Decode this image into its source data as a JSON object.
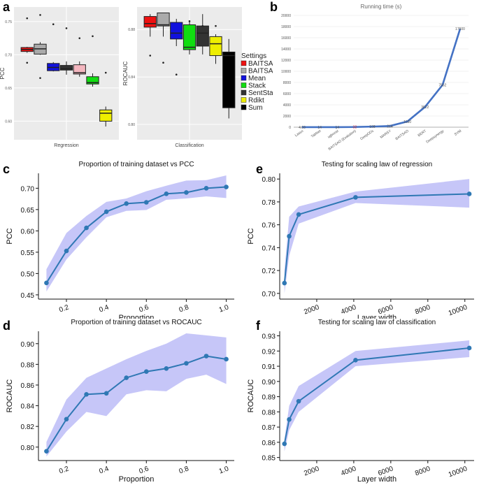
{
  "panel_labels": {
    "a": "a",
    "b": "b",
    "c": "c",
    "d": "d",
    "e": "e",
    "f": "f"
  },
  "colors": {
    "line": "#2f78b4",
    "band": "#b3b3f5",
    "grid": "#ebebeb",
    "boxbg": "#ebebeb",
    "bline": "#4472c4"
  },
  "chart_data": [
    {
      "id": "a_left",
      "type": "boxplot",
      "xlabel": "Regression",
      "ylabel": "PCC",
      "yticks": [
        "0.75",
        "0.70",
        "0.65",
        "0.60"
      ],
      "ylim": [
        0.572,
        0.772
      ],
      "box_colors": [
        "#ee1111",
        "#aaaaaa",
        "#1111dd",
        "#333333",
        "#f4b6bf",
        "#11dd11",
        "#eeee00"
      ],
      "boxes": [
        {
          "q1": 0.705,
          "med": 0.708,
          "q3": 0.711,
          "lo": 0.703,
          "hi": 0.712
        },
        {
          "q1": 0.701,
          "med": 0.709,
          "q3": 0.716,
          "lo": 0.7,
          "hi": 0.719
        },
        {
          "q1": 0.676,
          "med": 0.681,
          "q3": 0.687,
          "lo": 0.675,
          "hi": 0.689
        },
        {
          "q1": 0.677,
          "med": 0.679,
          "q3": 0.684,
          "lo": 0.67,
          "hi": 0.69
        },
        {
          "q1": 0.671,
          "med": 0.673,
          "q3": 0.685,
          "lo": 0.667,
          "hi": 0.69
        },
        {
          "q1": 0.656,
          "med": 0.658,
          "q3": 0.667,
          "lo": 0.652,
          "hi": 0.672
        },
        {
          "q1": 0.6,
          "med": 0.612,
          "q3": 0.617,
          "lo": 0.592,
          "hi": 0.622
        }
      ],
      "outliers": [
        [
          0,
          0.755
        ],
        [
          0,
          0.688
        ],
        [
          1,
          0.76
        ],
        [
          1,
          0.665
        ],
        [
          2,
          0.746
        ],
        [
          3,
          0.74
        ],
        [
          4,
          0.725
        ],
        [
          5,
          0.728
        ],
        [
          6,
          0.673
        ]
      ]
    },
    {
      "id": "a_right",
      "type": "boxplot",
      "xlabel": "Classification",
      "ylabel": "ROCAUC",
      "yticks": [
        "0.88",
        "0.84",
        "0.80"
      ],
      "ylim": [
        0.787,
        0.899
      ],
      "boxes": [
        {
          "q1": 0.882,
          "med": 0.885,
          "q3": 0.891,
          "lo": 0.874,
          "hi": 0.893
        },
        {
          "q1": 0.883,
          "med": 0.884,
          "q3": 0.894,
          "lo": 0.874,
          "hi": 0.894
        },
        {
          "q1": 0.872,
          "med": 0.877,
          "q3": 0.886,
          "lo": 0.866,
          "hi": 0.889
        },
        {
          "q1": 0.863,
          "med": 0.865,
          "q3": 0.884,
          "lo": 0.859,
          "hi": 0.887
        },
        {
          "q1": 0.866,
          "med": 0.877,
          "q3": 0.883,
          "lo": 0.859,
          "hi": 0.893
        },
        {
          "q1": 0.858,
          "med": 0.868,
          "q3": 0.874,
          "lo": 0.851,
          "hi": 0.876
        },
        {
          "q1": 0.814,
          "med": 0.858,
          "q3": 0.861,
          "lo": 0.805,
          "hi": 0.872
        }
      ],
      "outliers": [
        [
          0,
          0.858
        ],
        [
          1,
          0.852
        ],
        [
          2,
          0.842
        ],
        [
          3,
          0.887
        ],
        [
          4,
          0.883
        ],
        [
          5,
          0.883
        ]
      ]
    },
    {
      "id": "b",
      "type": "line",
      "title": "Running time (s)",
      "categories": [
        "Lasso",
        "TabNet",
        "xgboost",
        "BAITSAO (Evalution)",
        "DeepDDs",
        "MARSY",
        "BAITSAO",
        "BERT",
        "Deepsynergy",
        "SVM"
      ],
      "values": [
        4.0,
        14,
        14,
        32,
        108,
        214,
        1030,
        3622,
        7562,
        17600
      ],
      "labels": [
        "4.00",
        "14",
        "14",
        "32",
        "108",
        "214",
        "1030",
        "3622",
        "7562",
        "17600"
      ],
      "yticks": [
        0,
        2000,
        4000,
        6000,
        8000,
        10000,
        12000,
        14000,
        16000,
        18000,
        20000
      ],
      "ylim": [
        0,
        20000
      ]
    },
    {
      "id": "c",
      "type": "line",
      "title": "Proportion of training dataset vs PCC",
      "xlabel": "Proportion",
      "ylabel": "PCC",
      "x": [
        0.1,
        0.2,
        0.3,
        0.4,
        0.5,
        0.6,
        0.7,
        0.8,
        0.9,
        1.0
      ],
      "y": [
        0.478,
        0.553,
        0.607,
        0.645,
        0.664,
        0.667,
        0.687,
        0.69,
        0.7,
        0.703
      ],
      "lower": [
        0.458,
        0.533,
        0.585,
        0.632,
        0.647,
        0.649,
        0.673,
        0.676,
        0.681,
        0.677
      ],
      "upper": [
        0.51,
        0.595,
        0.635,
        0.668,
        0.676,
        0.693,
        0.706,
        0.718,
        0.719,
        0.73
      ],
      "xticks": [
        "0.2",
        "0.4",
        "0.6",
        "0.8",
        "1.0"
      ],
      "yticks": [
        "0.45",
        "0.50",
        "0.55",
        "0.60",
        "0.65",
        "0.70"
      ],
      "xlim": [
        0.06,
        1.04
      ],
      "ylim": [
        0.44,
        0.735
      ]
    },
    {
      "id": "d",
      "type": "line",
      "title": "Proportion of training dataset vs ROCAUC",
      "xlabel": "Proportion",
      "ylabel": "ROCAUC",
      "x": [
        0.1,
        0.2,
        0.3,
        0.4,
        0.5,
        0.6,
        0.7,
        0.8,
        0.9,
        1.0
      ],
      "y": [
        0.796,
        0.827,
        0.851,
        0.852,
        0.867,
        0.873,
        0.876,
        0.881,
        0.888,
        0.885
      ],
      "lower": [
        0.791,
        0.815,
        0.834,
        0.83,
        0.851,
        0.855,
        0.854,
        0.866,
        0.87,
        0.861
      ],
      "upper": [
        0.805,
        0.846,
        0.867,
        0.876,
        0.885,
        0.893,
        0.9,
        0.91,
        0.908,
        0.906
      ],
      "xticks": [
        "0.2",
        "0.4",
        "0.6",
        "0.8",
        "1.0"
      ],
      "yticks": [
        "0.80",
        "0.82",
        "0.84",
        "0.86",
        "0.88",
        "0.90"
      ],
      "xlim": [
        0.06,
        1.04
      ],
      "ylim": [
        0.787,
        0.912
      ]
    },
    {
      "id": "e",
      "type": "line",
      "title": "Testing for scaling law of regression",
      "xlabel": "Layer width",
      "ylabel": "PCC",
      "x": [
        256,
        512,
        1024,
        4096,
        10240
      ],
      "y": [
        0.709,
        0.75,
        0.769,
        0.784,
        0.787
      ],
      "lower": [
        0.7,
        0.733,
        0.761,
        0.779,
        0.775
      ],
      "upper": [
        0.72,
        0.767,
        0.776,
        0.789,
        0.8
      ],
      "xticks": [
        "2000",
        "4000",
        "6000",
        "8000",
        "10000"
      ],
      "yticks": [
        "0.70",
        "0.72",
        "0.74",
        "0.76",
        "0.78",
        "0.80"
      ],
      "xlim": [
        0,
        10500
      ],
      "ylim": [
        0.695,
        0.805
      ]
    },
    {
      "id": "f",
      "type": "line",
      "title": "Testing for scaling law of classification",
      "xlabel": "Layer width",
      "ylabel": "ROCAUC",
      "x": [
        256,
        512,
        1024,
        4096,
        10240
      ],
      "y": [
        0.859,
        0.875,
        0.887,
        0.914,
        0.922
      ],
      "lower": [
        0.854,
        0.868,
        0.88,
        0.91,
        0.916
      ],
      "upper": [
        0.862,
        0.884,
        0.897,
        0.92,
        0.927
      ],
      "xticks": [
        "2000",
        "4000",
        "6000",
        "8000",
        "10000"
      ],
      "yticks": [
        "0.85",
        "0.86",
        "0.87",
        "0.88",
        "0.89",
        "0.90",
        "0.91",
        "0.92",
        "0.93"
      ],
      "xlim": [
        0,
        10500
      ],
      "ylim": [
        0.848,
        0.933
      ]
    }
  ],
  "legend": {
    "title": "Settings",
    "items": [
      {
        "label": "BAITSAO",
        "color": "#ee1111"
      },
      {
        "label": "BAITSAO–v3",
        "color": "#aaaaaa"
      },
      {
        "label": "Mean",
        "color": "#1111dd"
      },
      {
        "label": "Stack",
        "color": "#11dd11"
      },
      {
        "label": "SentStack",
        "color": "#333333"
      },
      {
        "label": "Rdikt",
        "color": "#eeee00"
      },
      {
        "label": "Sum",
        "color": "#000000"
      }
    ]
  }
}
